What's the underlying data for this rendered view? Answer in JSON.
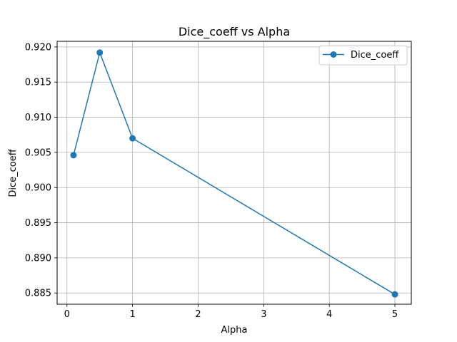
{
  "chart_data": {
    "type": "line",
    "title": "Dice_coeff vs Alpha",
    "xlabel": "Alpha",
    "ylabel": "Dice_coeff",
    "xlim": [
      -0.15,
      5.25
    ],
    "ylim": [
      0.8834,
      0.9208
    ],
    "xticks": [
      0,
      1,
      2,
      3,
      4,
      5
    ],
    "xtick_labels": [
      "0",
      "1",
      "2",
      "3",
      "4",
      "5"
    ],
    "yticks": [
      0.885,
      0.89,
      0.895,
      0.9,
      0.905,
      0.91,
      0.915,
      0.92
    ],
    "ytick_labels": [
      "0.885",
      "0.890",
      "0.895",
      "0.900",
      "0.905",
      "0.910",
      "0.915",
      "0.920"
    ],
    "grid": true,
    "legend_position": "top-right",
    "series": [
      {
        "name": "Dice_coeff",
        "color": "#1f77b4",
        "marker": "circle",
        "x": [
          0.1,
          0.5,
          1.0,
          5.0
        ],
        "values": [
          0.9046,
          0.9192,
          0.907,
          0.8848
        ]
      }
    ]
  }
}
